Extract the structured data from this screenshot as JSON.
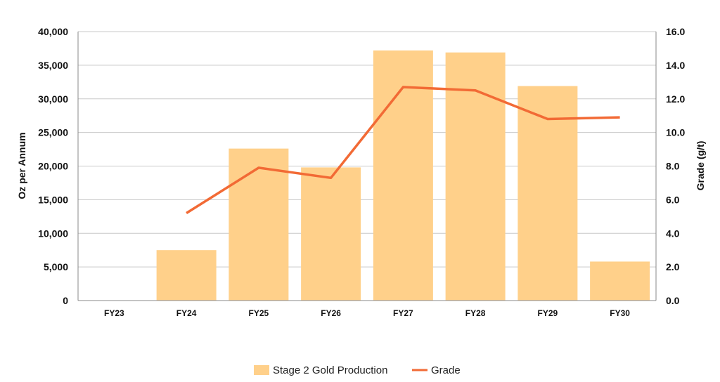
{
  "chart_data": {
    "type": "bar",
    "categories": [
      "FY23",
      "FY24",
      "FY25",
      "FY26",
      "FY27",
      "FY28",
      "FY29",
      "FY30"
    ],
    "series": [
      {
        "name": "Stage 2 Gold Production",
        "type": "bar",
        "axis": "left",
        "color": "#FFD08A",
        "values": [
          0,
          7500,
          22600,
          19800,
          37200,
          36900,
          31900,
          5800
        ]
      },
      {
        "name": "Grade",
        "type": "line",
        "axis": "right",
        "color": "#F26A35",
        "values": [
          null,
          5.2,
          7.9,
          7.3,
          12.7,
          12.5,
          10.8,
          10.9
        ]
      }
    ],
    "ylabel": "Oz per Annum",
    "y2label": "Grade (g/t)",
    "ylim": [
      0,
      40000
    ],
    "y2lim": [
      0,
      16
    ],
    "yticks": [
      "0",
      "5,000",
      "10,000",
      "15,000",
      "20,000",
      "25,000",
      "30,000",
      "35,000",
      "40,000"
    ],
    "y2ticks": [
      "0.0",
      "2.0",
      "4.0",
      "6.0",
      "8.0",
      "10.0",
      "12.0",
      "14.0",
      "16.0"
    ],
    "grid": true,
    "legend_position": "bottom"
  }
}
